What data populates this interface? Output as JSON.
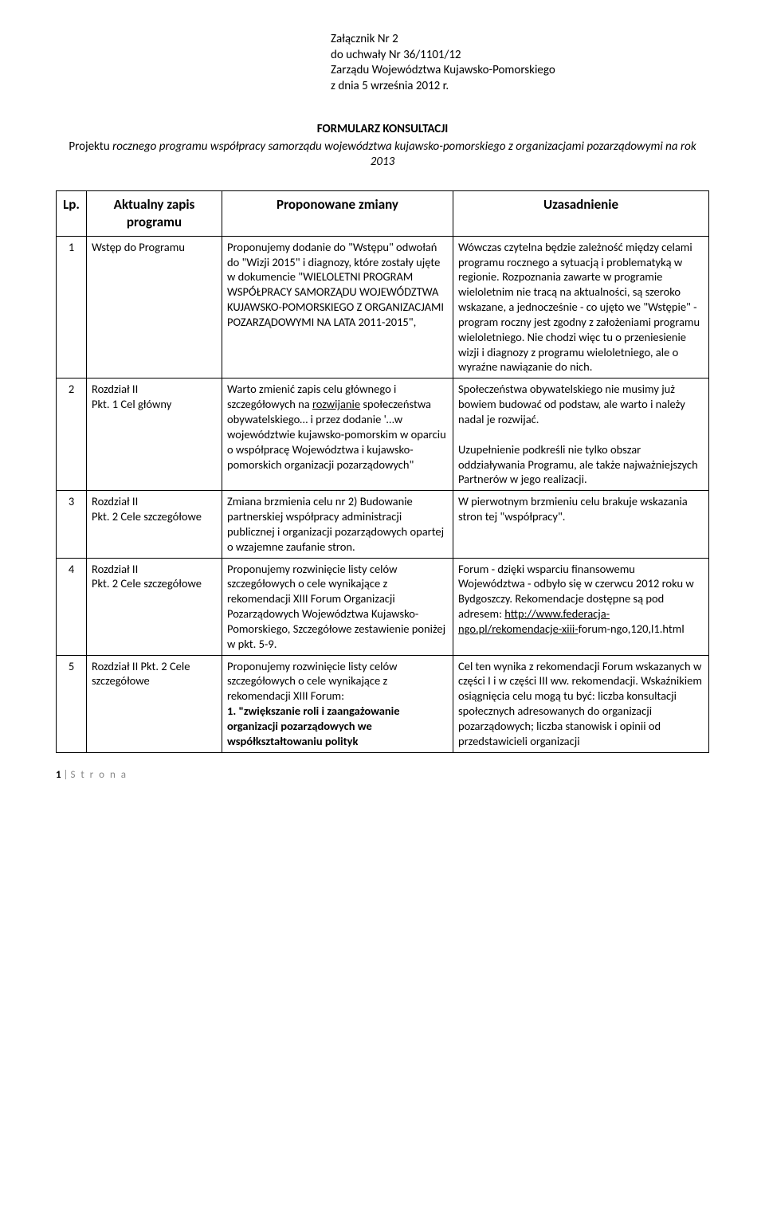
{
  "header": {
    "line1": "Załącznik Nr 2",
    "line2": "do uchwały Nr 36/1101/12",
    "line3": "Zarządu Województwa Kujawsko-Pomorskiego",
    "line4": "z dnia 5 września 2012 r."
  },
  "title": {
    "main": "FORMULARZ KONSULTACJI",
    "sub_prefix": "Projektu ",
    "sub_italic": "rocznego programu współpracy samorządu województwa kujawsko-pomorskiego z organizacjami pozarządowymi na rok 2013"
  },
  "table": {
    "headers": {
      "lp": "Lp.",
      "zapis": "Aktualny zapis programu",
      "zmiany": "Proponowane zmiany",
      "uzas": "Uzasadnienie"
    },
    "rows": [
      {
        "lp": "1",
        "zapis": "Wstęp do Programu",
        "zmiany": "Proponujemy dodanie do \"Wstępu\" odwołań do \"Wizji 2015\" i diagnozy, które zostały ujęte w dokumencie \"WIELOLETNI PROGRAM WSPÓŁPRACY SAMORZĄDU WOJEWÓDZTWA KUJAWSKO-POMORSKIEGO Z ORGANIZACJAMI POZARZĄDOWYMI NA LATA 2011-2015\",",
        "uzas": "Wówczas czytelna będzie zależność między celami programu rocznego a sytuacją i problematyką w regionie. Rozpoznania zawarte w programie wieloletnim nie tracą na aktualności, są szeroko wskazane, a jednocześnie - co ujęto we \"Wstępie\" - program roczny jest zgodny z założeniami programu wieloletniego. Nie chodzi więc tu o przeniesienie wizji i diagnozy z programu wieloletniego, ale o wyraźne nawiązanie do nich."
      },
      {
        "lp": "2",
        "zapis": "Rozdział II\nPkt. 1 Cel główny",
        "zmiany_pre": "Warto zmienić zapis celu głównego i szczegółowych na ",
        "zmiany_underline": "rozwijanie",
        "zmiany_post": " społeczeństwa obywatelskiego… i przez dodanie '…w województwie kujawsko-pomorskim w oparciu o współpracę Województwa i kujawsko-pomorskich organizacji pozarządowych\"",
        "uzas": "Społeczeństwa obywatelskiego nie musimy już bowiem budować od podstaw, ale warto i należy nadal je rozwijać.\n\nUzupełnienie podkreśli nie tylko obszar oddziaływania Programu, ale także najważniejszych Partnerów w jego realizacji."
      },
      {
        "lp": "3",
        "zapis": "Rozdział II\nPkt. 2 Cele szczegółowe",
        "zmiany": "Zmiana brzmienia celu nr 2) Budowanie partnerskiej współpracy administracji publicznej i organizacji pozarządowych opartej o wzajemne zaufanie stron.",
        "uzas": "W pierwotnym brzmieniu celu brakuje wskazania stron tej \"współpracy\"."
      },
      {
        "lp": "4",
        "zapis": "Rozdział II\nPkt. 2 Cele szczegółowe",
        "zmiany": "Proponujemy rozwinięcie listy celów szczegółowych o cele wynikające z rekomendacji XIII Forum Organizacji Pozarządowych Województwa Kujawsko-Pomorskiego, Szczegółowe zestawienie poniżej w pkt. 5-9.",
        "uzas_pre": "Forum - dzięki wsparciu finansowemu Województwa - odbyło się w czerwcu 2012 roku w Bydgoszczy. Rekomendacje dostępne są pod adresem: ",
        "uzas_underline": "http://www.federacja-ngo.pl/rekomendacje-xiii-",
        "uzas_post": "forum-ngo,120,l1.html"
      },
      {
        "lp": "5",
        "zapis": "Rozdział II Pkt. 2 Cele szczegółowe",
        "zmiany_pre": "Proponujemy rozwinięcie listy celów szczegółowych o cele wynikające z rekomendacji XIII Forum:\n    ",
        "zmiany_bold": "1.    \"zwiększanie roli i zaangażowanie organizacji pozarządowych we współkształtowaniu polityk",
        "uzas": "Cel ten wynika z rekomendacji Forum wskazanych w części I i w części III ww. rekomendacji. Wskaźnikiem osiągnięcia celu mogą tu być: liczba konsultacji społecznych adresowanych do organizacji pozarządowych; liczba stanowisk i opinii od przedstawicieli organizacji"
      }
    ]
  },
  "footer": {
    "pagenum": "1",
    "bar": " | ",
    "strona": "S t r o n a"
  }
}
